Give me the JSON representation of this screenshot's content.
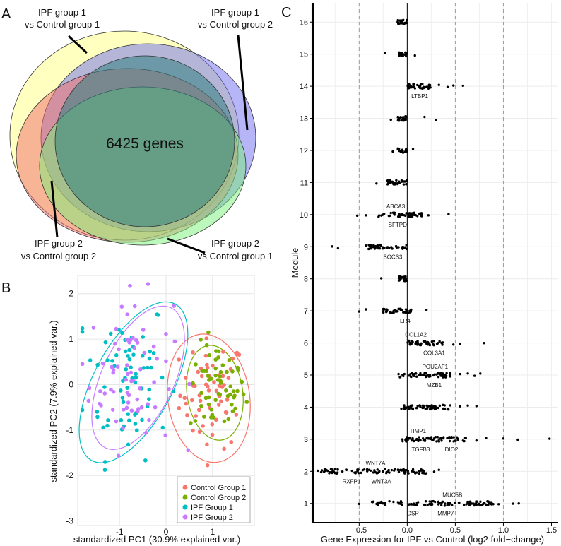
{
  "panels": {
    "a": {
      "letter": "A"
    },
    "b": {
      "letter": "B"
    },
    "c": {
      "letter": "C"
    }
  },
  "chart_data": [
    {
      "type": "venn",
      "panel": "A",
      "center_label": "6425 genes",
      "sets": [
        {
          "name": "IPF group 1 vs Control group 1",
          "label_lines": [
            "IPF group 1",
            "vs Control group 1"
          ],
          "color": "#ffff80"
        },
        {
          "name": "IPF group 1 vs Control group 2",
          "label_lines": [
            "IPF group 1",
            "vs Control group 2"
          ],
          "color": "#6b6bf0"
        },
        {
          "name": "IPF group 2 vs Control group 2",
          "label_lines": [
            "IPF group 2",
            "vs Control group 2"
          ],
          "color": "#f26b6b"
        },
        {
          "name": "IPF group 2 vs Control group 1",
          "label_lines": [
            "IPF group 2",
            "vs Control group 1"
          ],
          "color": "#7af07a"
        }
      ]
    },
    {
      "type": "scatter",
      "panel": "B",
      "xlabel": "standardized PC1 (30.9% explained var.)",
      "ylabel": "standardized PC2 (7.9% explained var.)",
      "xlim": [
        -1.9,
        1.9
      ],
      "ylim": [
        -3.1,
        2.4
      ],
      "xticks": [
        -1,
        0,
        1
      ],
      "yticks": [
        -3,
        -2,
        -1,
        0,
        1,
        2
      ],
      "grid": true,
      "legend_position": "bottom-right",
      "series": [
        {
          "name": "Control Group 1",
          "color": "#f8766d",
          "n": 60,
          "center": [
            1.0,
            -0.2
          ],
          "spread": [
            0.35,
            0.6
          ],
          "ellipse": {
            "center": [
              0.92,
              -0.3
            ],
            "axes": [
              0.88,
              1.42
            ],
            "angle": -8
          }
        },
        {
          "name": "Control Group 2",
          "color": "#7cae00",
          "n": 60,
          "center": [
            1.1,
            -0.1
          ],
          "spread": [
            0.3,
            0.5
          ],
          "ellipse": {
            "center": [
              1.05,
              -0.18
            ],
            "axes": [
              0.6,
              1.05
            ],
            "angle": -8
          }
        },
        {
          "name": "IPF Group 1",
          "color": "#00bfc4",
          "n": 70,
          "center": [
            -0.85,
            0.2
          ],
          "spread": [
            0.45,
            0.9
          ],
          "ellipse": {
            "center": [
              -0.7,
              0.05
            ],
            "axes": [
              0.85,
              1.95
            ],
            "angle": 28
          }
        },
        {
          "name": "IPF Group 2",
          "color": "#c77cff",
          "n": 70,
          "center": [
            -0.75,
            0.25
          ],
          "spread": [
            0.45,
            0.85
          ],
          "ellipse": {
            "center": [
              -0.6,
              0.15
            ],
            "axes": [
              0.78,
              1.7
            ],
            "angle": 25
          }
        }
      ]
    },
    {
      "type": "strip",
      "panel": "C",
      "xlabel": "Gene Expression for IPF vs Control (log2 fold−change)",
      "ylabel": "Module",
      "xlim": [
        -0.98,
        1.57
      ],
      "ylim": [
        0.4,
        16.6
      ],
      "xticks": [
        -0.5,
        0.0,
        0.5,
        1.0,
        1.5
      ],
      "xtick_labels": [
        "−0.5",
        "0.0",
        "0.5",
        "1.0",
        "1.5"
      ],
      "dashed_vlines": [
        -0.5,
        0.5,
        1.0
      ],
      "solid_vline": 0.0,
      "modules": [
        {
          "module": 16,
          "range": [
            -0.1,
            0.0
          ],
          "n": 20,
          "extras": []
        },
        {
          "module": 15,
          "range": [
            -0.1,
            0.0
          ],
          "n": 20,
          "extras": [
            -0.23,
            0.08
          ]
        },
        {
          "module": 14,
          "range": [
            0.0,
            0.25
          ],
          "n": 40,
          "extras": [
            0.33,
            0.42,
            0.48,
            0.58
          ]
        },
        {
          "module": 13,
          "range": [
            -0.1,
            0.0
          ],
          "n": 25,
          "extras": [
            -0.17,
            0.18,
            0.3
          ]
        },
        {
          "module": 12,
          "range": [
            -0.1,
            0.0
          ],
          "n": 20,
          "extras": [
            -0.15,
            0.06
          ]
        },
        {
          "module": 11,
          "range": [
            -0.22,
            0.0
          ],
          "n": 30,
          "extras": [
            -0.32
          ]
        },
        {
          "module": 10,
          "range": [
            -0.3,
            0.15
          ],
          "n": 55,
          "extras": [
            -0.52,
            -0.43,
            0.22,
            0.43
          ]
        },
        {
          "module": 9,
          "range": [
            -0.45,
            0.0
          ],
          "n": 45,
          "extras": [
            -0.78,
            -0.72
          ]
        },
        {
          "module": 8,
          "range": [
            -0.1,
            0.0
          ],
          "n": 20,
          "extras": [
            -0.27
          ]
        },
        {
          "module": 7,
          "range": [
            -0.25,
            0.05
          ],
          "n": 40,
          "extras": [
            -0.5,
            -0.43,
            0.2
          ]
        },
        {
          "module": 6,
          "range": [
            0.0,
            0.38
          ],
          "n": 45,
          "extras": [
            0.48,
            0.55,
            0.8
          ]
        },
        {
          "module": 5,
          "range": [
            -0.1,
            0.48
          ],
          "n": 60,
          "extras": [
            0.55,
            0.63,
            0.7,
            0.76
          ]
        },
        {
          "module": 4,
          "range": [
            -0.08,
            0.45
          ],
          "n": 60,
          "extras": [
            0.55,
            0.63,
            0.72
          ]
        },
        {
          "module": 3,
          "range": [
            -0.05,
            0.62
          ],
          "n": 70,
          "extras": [
            0.72,
            0.82,
            1.0,
            1.15,
            1.48
          ]
        },
        {
          "module": 2,
          "range": [
            -0.9,
            0.2
          ],
          "n": 100,
          "extras": [
            -0.93,
            0.28,
            0.33
          ]
        },
        {
          "module": 1,
          "range": [
            -0.4,
            0.9
          ],
          "n": 110,
          "extras": [
            -0.5,
            0.95,
            1.1,
            1.16
          ]
        }
      ],
      "annotations": [
        {
          "text": "LTBP1",
          "module": 14,
          "x": 0.13,
          "pos": "below"
        },
        {
          "text": "ABCA3",
          "module": 10,
          "x": -0.12,
          "pos": "above"
        },
        {
          "text": "SFTPD",
          "module": 10,
          "x": -0.1,
          "pos": "below"
        },
        {
          "text": "SOCS3",
          "module": 9,
          "x": -0.15,
          "pos": "below"
        },
        {
          "text": "TLR4",
          "module": 7,
          "x": -0.04,
          "pos": "below"
        },
        {
          "text": "COL1A2",
          "module": 6,
          "x": 0.09,
          "pos": "above"
        },
        {
          "text": "COL3A1",
          "module": 6,
          "x": 0.28,
          "pos": "below"
        },
        {
          "text": "POU2AF1",
          "module": 5,
          "x": 0.29,
          "pos": "above"
        },
        {
          "text": "MZB1",
          "module": 5,
          "x": 0.28,
          "pos": "below"
        },
        {
          "text": "TIMP1",
          "module": 3,
          "x": 0.11,
          "pos": "above"
        },
        {
          "text": "TGFB3",
          "module": 3,
          "x": 0.14,
          "pos": "below"
        },
        {
          "text": "DIO2",
          "module": 3,
          "x": 0.46,
          "pos": "below"
        },
        {
          "text": "WNT7A",
          "module": 2,
          "x": -0.33,
          "pos": "above"
        },
        {
          "text": "RXFP1",
          "module": 2,
          "x": -0.58,
          "pos": "below"
        },
        {
          "text": "WNT3A",
          "module": 2,
          "x": -0.27,
          "pos": "below"
        },
        {
          "text": "MUC5B",
          "module": 1,
          "x": 0.47,
          "pos": "above"
        },
        {
          "text": "DSP",
          "module": 1,
          "x": 0.06,
          "pos": "below"
        },
        {
          "text": "MMP7",
          "module": 1,
          "x": 0.4,
          "pos": "below"
        }
      ]
    }
  ]
}
